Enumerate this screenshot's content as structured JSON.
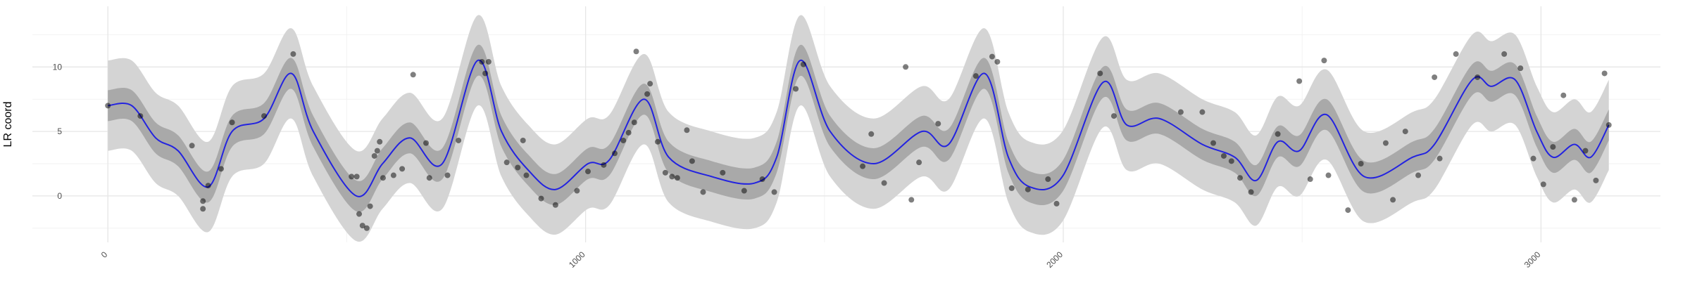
{
  "chart_data": {
    "type": "smooth_scatter",
    "y_label": "LR coord",
    "xlim": [
      -158,
      3250
    ],
    "ylim": [
      -3.6,
      14.7
    ],
    "xticks": [
      0,
      1000,
      2000,
      3000
    ],
    "yticks": [
      0,
      5,
      10
    ],
    "grid": {
      "major": true,
      "minor": true
    },
    "x": [
      0,
      50,
      100,
      147,
      210,
      260,
      327,
      384,
      430,
      520,
      575,
      632,
      700,
      774,
      824,
      880,
      937,
      1005,
      1050,
      1122,
      1174,
      1264,
      1354,
      1400,
      1449,
      1512,
      1603,
      1704,
      1760,
      1835,
      1885,
      1930,
      1998,
      2083,
      2133,
      2201,
      2291,
      2359,
      2404,
      2449,
      2494,
      2551,
      2630,
      2731,
      2777,
      2856,
      2896,
      2946,
      2991,
      3025,
      3070,
      3104,
      3142
    ],
    "line": {
      "color": "#2323e0",
      "values": [
        7.0,
        7.0,
        4.5,
        3.5,
        0.7,
        5,
        6,
        9.5,
        5,
        0,
        2.5,
        4.5,
        2.5,
        10.5,
        5,
        2,
        0.5,
        2.5,
        2.8,
        7.5,
        3,
        1.5,
        1,
        3,
        10.5,
        5,
        2.5,
        5,
        4,
        9.5,
        3,
        0.7,
        1.5,
        8.8,
        5.5,
        6,
        4,
        3,
        1.2,
        4.2,
        3.5,
        6.3,
        1.5,
        3,
        4,
        9,
        8.5,
        9,
        5,
        3,
        4,
        3,
        5.5
      ]
    },
    "band_inner": {
      "color": "#a9a9a9",
      "lower": [
        5.8,
        5.8,
        3.3,
        2.3,
        -0.5,
        3.8,
        4.8,
        8.3,
        3.8,
        -1.2,
        1.3,
        3.3,
        1.3,
        9.3,
        3.8,
        0.8,
        -0.7,
        1.3,
        1.6,
        6.3,
        1.8,
        0.3,
        -0.2,
        1.8,
        9.3,
        3.8,
        1.3,
        3.8,
        2.8,
        8.3,
        1.8,
        -0.5,
        0.3,
        7.6,
        4.3,
        4.8,
        2.8,
        1.8,
        0.0,
        3.0,
        2.3,
        5.1,
        0.3,
        1.8,
        2.8,
        7.8,
        7.3,
        7.8,
        3.8,
        1.8,
        2.8,
        1.8,
        4.3
      ],
      "upper": [
        8.2,
        8.2,
        5.7,
        4.7,
        1.9,
        6.2,
        7.2,
        10.7,
        6.2,
        1.2,
        3.7,
        5.7,
        3.7,
        11.7,
        6.2,
        3.2,
        1.7,
        3.7,
        4.0,
        8.7,
        4.2,
        2.7,
        2.2,
        4.2,
        11.7,
        6.2,
        3.7,
        6.2,
        5.2,
        10.7,
        4.2,
        1.9,
        2.7,
        10.0,
        6.7,
        7.2,
        5.2,
        4.2,
        2.4,
        5.4,
        4.7,
        7.5,
        2.7,
        4.2,
        5.2,
        10.2,
        9.7,
        10.2,
        6.2,
        4.2,
        5.2,
        4.2,
        6.7
      ]
    },
    "band_outer": {
      "color": "#d4d4d4",
      "lower": [
        3.5,
        3.5,
        1.0,
        0.0,
        -2.8,
        1.5,
        2.5,
        6.0,
        1.5,
        -3.5,
        -1.0,
        1.0,
        -1.0,
        7.0,
        1.5,
        -1.5,
        -3.0,
        -1.0,
        -0.7,
        4.0,
        -0.5,
        -2.0,
        -2.5,
        -0.5,
        7.0,
        1.5,
        -1.0,
        1.5,
        0.5,
        6.0,
        -0.5,
        -2.8,
        -2.0,
        5.3,
        2.0,
        2.5,
        0.5,
        -0.5,
        -2.3,
        0.7,
        0.0,
        2.8,
        -2.0,
        -0.5,
        0.5,
        5.5,
        5.0,
        5.5,
        1.5,
        -0.5,
        0.5,
        -0.5,
        2.0
      ],
      "upper": [
        10.5,
        10.5,
        8.0,
        7.0,
        4.2,
        8.5,
        9.5,
        13.0,
        8.5,
        3.5,
        6.0,
        8.0,
        6.0,
        14.0,
        8.5,
        5.5,
        4.0,
        6.0,
        6.3,
        11.0,
        6.5,
        5.0,
        4.5,
        6.5,
        14.0,
        8.5,
        6.0,
        8.5,
        7.5,
        13.0,
        6.5,
        4.2,
        5.0,
        12.3,
        9.0,
        9.5,
        7.5,
        6.5,
        4.7,
        7.7,
        7.0,
        9.8,
        5.0,
        6.5,
        7.5,
        12.5,
        12.0,
        12.5,
        8.5,
        6.5,
        7.5,
        6.5,
        9.0
      ]
    },
    "points": {
      "color": "#000000",
      "x": [
        0,
        68,
        176,
        199,
        199,
        210,
        237,
        260,
        327,
        388,
        510,
        521,
        526,
        533,
        542,
        549,
        558,
        564,
        569,
        576,
        598,
        616,
        639,
        666,
        673,
        711,
        734,
        783,
        790,
        797,
        835,
        858,
        869,
        876,
        907,
        937,
        982,
        1005,
        1038,
        1061,
        1079,
        1090,
        1102,
        1106,
        1129,
        1135,
        1151,
        1167,
        1181,
        1192,
        1212,
        1223,
        1246,
        1287,
        1332,
        1370,
        1395,
        1440,
        1456,
        1580,
        1598,
        1625,
        1670,
        1682,
        1698,
        1738,
        1817,
        1851,
        1862,
        1892,
        1926,
        1968,
        1986,
        2077,
        2106,
        2246,
        2291,
        2314,
        2336,
        2352,
        2370,
        2393,
        2449,
        2494,
        2517,
        2546,
        2555,
        2596,
        2623,
        2675,
        2690,
        2716,
        2743,
        2777,
        2788,
        2822,
        2867,
        2923,
        2957,
        2984,
        3005,
        3025,
        3047,
        3070,
        3093,
        3115,
        3133,
        3142
      ],
      "y": [
        7.0,
        6.2,
        3.9,
        -0.4,
        -1.0,
        0.8,
        2.1,
        5.7,
        6.2,
        11.0,
        1.5,
        1.5,
        -1.4,
        -2.3,
        -2.5,
        -0.8,
        3.1,
        3.5,
        4.2,
        1.4,
        1.6,
        2.1,
        9.4,
        4.1,
        1.4,
        1.6,
        4.3,
        10.4,
        9.5,
        10.4,
        2.6,
        2.2,
        4.3,
        1.6,
        -0.2,
        -0.7,
        0.4,
        1.9,
        2.4,
        3.3,
        4.3,
        4.9,
        5.7,
        11.2,
        7.9,
        8.7,
        4.2,
        1.8,
        1.5,
        1.4,
        5.1,
        2.7,
        0.3,
        1.8,
        0.4,
        1.3,
        0.3,
        8.3,
        10.2,
        2.3,
        4.8,
        1.0,
        10.0,
        -0.3,
        2.6,
        5.6,
        9.3,
        10.8,
        10.4,
        0.6,
        0.5,
        1.3,
        -0.6,
        9.5,
        6.2,
        6.5,
        6.5,
        4.1,
        3.1,
        2.7,
        1.4,
        0.3,
        4.8,
        8.9,
        1.3,
        10.5,
        1.6,
        -1.1,
        2.5,
        4.1,
        -0.3,
        5.0,
        1.6,
        9.2,
        2.9,
        11.0,
        9.2,
        11.0,
        9.9,
        2.9,
        0.9,
        3.8,
        7.8,
        -0.3,
        3.5,
        1.2,
        9.5,
        5.5
      ]
    }
  }
}
